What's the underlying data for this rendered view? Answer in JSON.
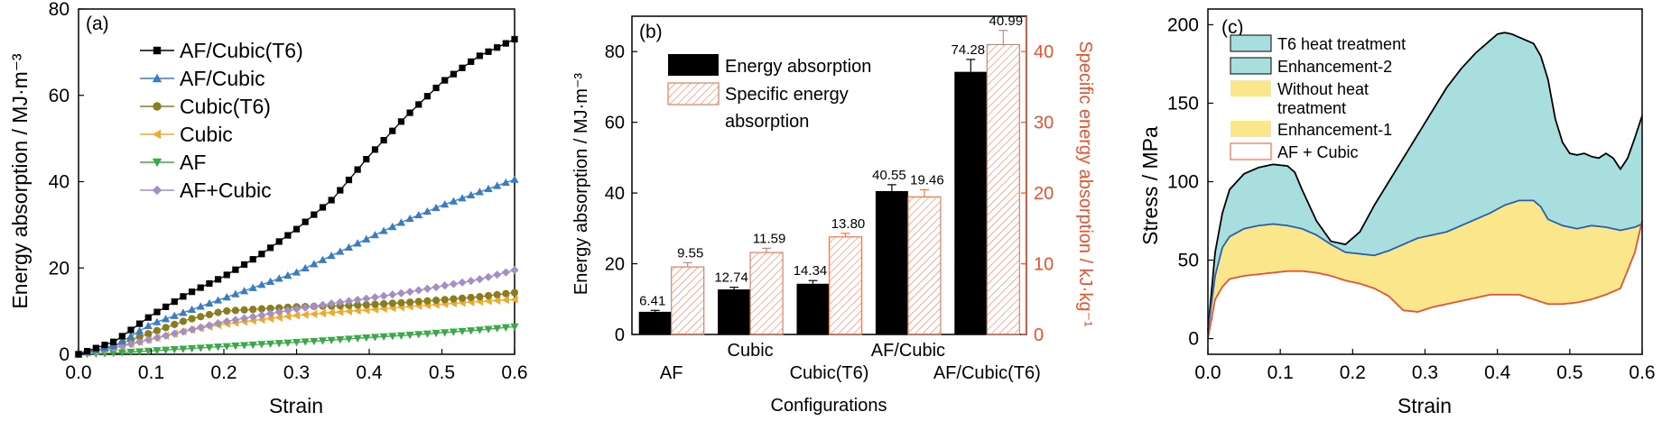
{
  "colors": {
    "axis": "#000000",
    "right_axis": "#e8532c",
    "af_cubic_t6": "#000000",
    "af_cubic": "#3a7cc4",
    "cubic_t6": "#8a7d1f",
    "cubic": "#f0a929",
    "af": "#3aa94a",
    "af_plus_cubic": "#a48ec5",
    "bar_hatch": "#e87b5a",
    "fill_t6": "#a9dedf",
    "fill_enh1": "#fae78c",
    "line_t6": "#000000",
    "line_mid": "#2a5fb0",
    "line_low": "#e8532c"
  },
  "chart_data": [
    {
      "panel_label": "(a)",
      "type": "line",
      "xlabel": "Strain",
      "ylabel": "Energy absorption / MJ·m⁻³",
      "xlim": [
        0,
        0.6
      ],
      "ylim": [
        0,
        80
      ],
      "xticks": [
        "0.0",
        "0.1",
        "0.2",
        "0.3",
        "0.4",
        "0.5",
        "0.6"
      ],
      "yticks": [
        "0",
        "20",
        "40",
        "60",
        "80"
      ],
      "legend_position": "top-left",
      "series": [
        {
          "name": "AF/Cubic(T6)",
          "marker": "square",
          "color_key": "af_cubic_t6",
          "x": [
            0,
            0.05,
            0.1,
            0.15,
            0.2,
            0.25,
            0.3,
            0.35,
            0.4,
            0.45,
            0.5,
            0.55,
            0.6
          ],
          "y": [
            0,
            3,
            9,
            14,
            18,
            23,
            29,
            36,
            46,
            55,
            63,
            69,
            73
          ]
        },
        {
          "name": "AF/Cubic",
          "marker": "triangle-up",
          "color_key": "af_cubic",
          "x": [
            0,
            0.05,
            0.1,
            0.15,
            0.2,
            0.25,
            0.3,
            0.35,
            0.4,
            0.45,
            0.5,
            0.55,
            0.6
          ],
          "y": [
            0,
            2,
            7,
            10,
            13,
            16,
            19,
            23,
            27,
            31,
            34.5,
            37.5,
            40.5
          ]
        },
        {
          "name": "Cubic(T6)",
          "marker": "circle",
          "color_key": "cubic_t6",
          "x": [
            0,
            0.05,
            0.1,
            0.15,
            0.2,
            0.25,
            0.3,
            0.35,
            0.4,
            0.45,
            0.5,
            0.55,
            0.6
          ],
          "y": [
            0,
            2,
            5,
            8,
            10,
            10.5,
            11,
            11.2,
            11.5,
            12,
            12.6,
            13.3,
            14.3
          ]
        },
        {
          "name": "Cubic",
          "marker": "triangle-left",
          "color_key": "cubic",
          "x": [
            0,
            0.05,
            0.1,
            0.15,
            0.2,
            0.25,
            0.3,
            0.35,
            0.4,
            0.45,
            0.5,
            0.55,
            0.6
          ],
          "y": [
            0,
            1.5,
            3.5,
            5.5,
            7,
            8,
            9,
            9.7,
            10.3,
            11,
            11.6,
            12.2,
            12.7
          ]
        },
        {
          "name": "AF",
          "marker": "triangle-down",
          "color_key": "af",
          "x": [
            0,
            0.05,
            0.1,
            0.15,
            0.2,
            0.25,
            0.3,
            0.35,
            0.4,
            0.45,
            0.5,
            0.55,
            0.6
          ],
          "y": [
            0,
            0.3,
            0.8,
            1.3,
            1.8,
            2.3,
            2.8,
            3.3,
            3.9,
            4.4,
            5.0,
            5.6,
            6.4
          ]
        },
        {
          "name": "AF+Cubic",
          "marker": "diamond",
          "color_key": "af_plus_cubic",
          "x": [
            0,
            0.05,
            0.1,
            0.15,
            0.2,
            0.25,
            0.3,
            0.35,
            0.4,
            0.45,
            0.5,
            0.55,
            0.6
          ],
          "y": [
            0,
            1.5,
            3.5,
            5.5,
            7.5,
            9,
            10.5,
            11.8,
            13,
            14.3,
            15.8,
            17.3,
            19.5
          ]
        }
      ]
    },
    {
      "panel_label": "(b)",
      "type": "bar",
      "xlabel": "Configurations",
      "ylabel": "Energy absorption / MJ·m⁻³",
      "y2label": "Specific energy absorption / kJ·kg⁻¹",
      "ylim": [
        0,
        90
      ],
      "y2lim": [
        0,
        45
      ],
      "yticks": [
        "0",
        "20",
        "40",
        "60",
        "80"
      ],
      "y2ticks": [
        "0",
        "10",
        "20",
        "30",
        "40"
      ],
      "categories": [
        "AF",
        "Cubic",
        "Cubic(T6)",
        "AF/Cubic",
        "AF/Cubic(T6)"
      ],
      "legend_position": "top-left",
      "series": [
        {
          "name": "Energy absorption",
          "axis": "left",
          "style": "solid-black",
          "values": [
            6.41,
            12.74,
            14.34,
            40.55,
            74.28
          ],
          "errors": [
            0.4,
            0.6,
            0.9,
            1.8,
            3.5
          ],
          "value_labels": [
            "6.41",
            "12.74",
            "14.34",
            "40.55",
            "74.28"
          ]
        },
        {
          "name": "Specific energy absorption",
          "axis": "right",
          "style": "hatched",
          "values": [
            9.55,
            11.59,
            13.8,
            19.46,
            40.99
          ],
          "errors": [
            0.6,
            0.6,
            0.5,
            1.0,
            2.0
          ],
          "value_labels": [
            "9.55",
            "11.59",
            "13.80",
            "19.46",
            "40.99"
          ]
        }
      ],
      "legend": [
        "Energy absorption",
        "Specific energy",
        "absorption"
      ]
    },
    {
      "panel_label": "(c)",
      "type": "area",
      "xlabel": "Strain",
      "ylabel": "Stress / MPa",
      "xlim": [
        0,
        0.6
      ],
      "ylim": [
        -10,
        210
      ],
      "xticks": [
        "0.0",
        "0.1",
        "0.2",
        "0.3",
        "0.4",
        "0.5",
        "0.6"
      ],
      "yticks": [
        "0",
        "50",
        "100",
        "150",
        "200"
      ],
      "legend_position": "top-left",
      "legend": [
        {
          "label": "T6 heat treatment",
          "swatch": "fill_t6"
        },
        {
          "label": "Enhancement-2",
          "swatch": "fill_t6"
        },
        {
          "label": "Without heat",
          "label2": "treatment",
          "swatch": "fill_enh1"
        },
        {
          "label": "Enhancement-1",
          "swatch": "fill_enh1"
        },
        {
          "label": "AF + Cubic",
          "swatch": "none"
        }
      ],
      "series": [
        {
          "name": "T6 heat treatment",
          "color_key": "line_t6",
          "x": [
            0,
            0.005,
            0.01,
            0.02,
            0.03,
            0.05,
            0.07,
            0.09,
            0.11,
            0.12,
            0.13,
            0.15,
            0.17,
            0.19,
            0.21,
            0.23,
            0.25,
            0.27,
            0.29,
            0.31,
            0.33,
            0.35,
            0.37,
            0.39,
            0.4,
            0.41,
            0.42,
            0.43,
            0.44,
            0.45,
            0.46,
            0.47,
            0.48,
            0.49,
            0.5,
            0.51,
            0.52,
            0.53,
            0.54,
            0.55,
            0.56,
            0.57,
            0.58,
            0.59,
            0.6
          ],
          "y": [
            5,
            30,
            55,
            80,
            95,
            105,
            109,
            111,
            110,
            106,
            95,
            75,
            62,
            60,
            68,
            85,
            100,
            115,
            130,
            145,
            160,
            172,
            182,
            190,
            194,
            195,
            194,
            192,
            190,
            188,
            180,
            165,
            140,
            125,
            118,
            117,
            118,
            116,
            115,
            118,
            115,
            108,
            115,
            128,
            142
          ]
        },
        {
          "name": "Without heat treatment",
          "color_key": "line_mid",
          "x": [
            0,
            0.01,
            0.02,
            0.03,
            0.05,
            0.07,
            0.09,
            0.11,
            0.13,
            0.15,
            0.17,
            0.19,
            0.21,
            0.23,
            0.25,
            0.27,
            0.29,
            0.31,
            0.33,
            0.35,
            0.37,
            0.39,
            0.41,
            0.43,
            0.45,
            0.46,
            0.47,
            0.49,
            0.51,
            0.53,
            0.55,
            0.57,
            0.59,
            0.6
          ],
          "y": [
            5,
            40,
            58,
            65,
            70,
            72,
            73,
            72,
            70,
            66,
            60,
            55,
            54,
            53,
            56,
            60,
            64,
            66,
            68,
            72,
            76,
            80,
            85,
            88,
            88,
            84,
            76,
            72,
            70,
            72,
            71,
            69,
            71,
            73
          ]
        },
        {
          "name": "AF + Cubic",
          "color_key": "line_low",
          "x": [
            0,
            0.01,
            0.02,
            0.03,
            0.05,
            0.07,
            0.09,
            0.11,
            0.13,
            0.15,
            0.17,
            0.19,
            0.21,
            0.23,
            0.25,
            0.27,
            0.29,
            0.31,
            0.33,
            0.35,
            0.37,
            0.39,
            0.41,
            0.43,
            0.45,
            0.47,
            0.49,
            0.51,
            0.53,
            0.55,
            0.57,
            0.59,
            0.6
          ],
          "y": [
            0,
            25,
            33,
            38,
            40,
            41,
            42,
            43,
            43,
            42,
            40,
            37,
            35,
            32,
            27,
            18,
            17,
            20,
            22,
            24,
            26,
            28,
            28,
            28,
            25,
            22,
            22,
            23,
            25,
            28,
            32,
            55,
            75
          ]
        }
      ]
    }
  ]
}
